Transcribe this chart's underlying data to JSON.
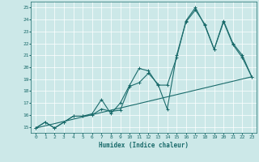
{
  "title": "",
  "xlabel": "Humidex (Indice chaleur)",
  "ylabel": "",
  "bg_color": "#cce8e8",
  "line_color": "#1a6b6b",
  "grid_color": "#ffffff",
  "xlim": [
    -0.5,
    23.5
  ],
  "ylim": [
    14.5,
    25.5
  ],
  "yticks": [
    15,
    16,
    17,
    18,
    19,
    20,
    21,
    22,
    23,
    24,
    25
  ],
  "xticks": [
    0,
    1,
    2,
    3,
    4,
    5,
    6,
    7,
    8,
    9,
    10,
    11,
    12,
    13,
    14,
    15,
    16,
    17,
    18,
    19,
    20,
    21,
    22,
    23
  ],
  "line1_x": [
    0,
    1,
    2,
    3,
    4,
    5,
    6,
    7,
    8,
    9,
    10,
    11,
    12,
    13,
    14,
    15,
    16,
    17,
    18,
    19,
    20,
    21,
    22,
    23
  ],
  "line1_y": [
    14.9,
    15.4,
    14.9,
    15.4,
    15.9,
    15.9,
    16.1,
    17.3,
    16.1,
    17.0,
    18.5,
    19.9,
    19.7,
    18.5,
    18.5,
    20.8,
    23.9,
    25.0,
    23.5,
    21.5,
    23.8,
    21.9,
    20.8,
    19.2
  ],
  "line2_x": [
    0,
    1,
    2,
    3,
    4,
    5,
    6,
    7,
    8,
    9,
    10,
    11,
    12,
    13,
    14,
    15,
    16,
    17,
    18,
    19,
    20,
    21,
    22,
    23
  ],
  "line2_y": [
    14.9,
    15.4,
    14.9,
    15.4,
    15.9,
    15.9,
    16.0,
    16.5,
    16.3,
    16.4,
    18.4,
    18.7,
    19.5,
    18.6,
    16.5,
    21.0,
    23.8,
    24.8,
    23.6,
    21.5,
    23.9,
    22.0,
    21.0,
    19.2
  ],
  "line3_x": [
    0,
    23
  ],
  "line3_y": [
    14.9,
    19.2
  ]
}
